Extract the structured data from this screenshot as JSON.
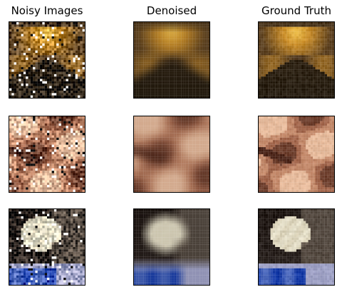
{
  "figure": {
    "columns": [
      "Noisy Images",
      "Denoised",
      "Ground Truth"
    ],
    "rows": [
      {
        "scene": "ornate-dome-archway",
        "palette": {
          "dark": "#1a140b",
          "mid": "#5a3f1f",
          "light": "#c88b27",
          "highlight": "#f1c24d"
        }
      },
      {
        "scene": "carved-marble-texture",
        "palette": {
          "dark": "#4a2418",
          "mid": "#a0644a",
          "light": "#d9a07e",
          "highlight": "#f1d2b6"
        }
      },
      {
        "scene": "white-fluffy-dog-blue-cloth",
        "palette": {
          "dark": "#2d2522",
          "mid": "#776a5b",
          "light": "#ded7bf",
          "highlight": "#2e4fb0"
        }
      }
    ]
  }
}
